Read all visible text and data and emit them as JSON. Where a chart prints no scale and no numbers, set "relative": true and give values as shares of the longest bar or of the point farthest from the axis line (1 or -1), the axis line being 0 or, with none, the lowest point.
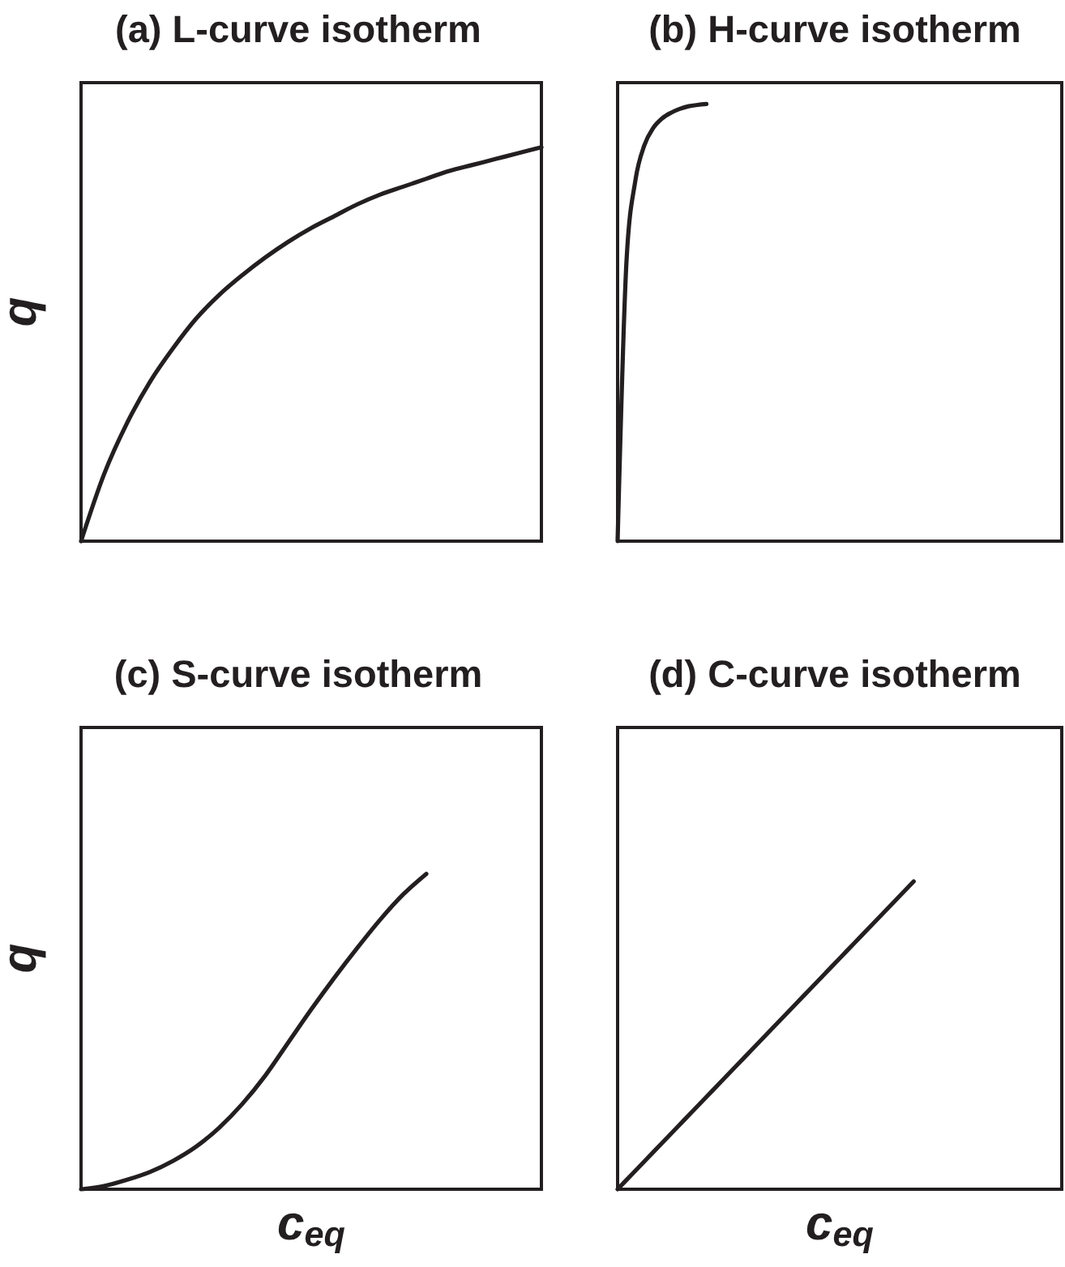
{
  "chart_data": [
    {
      "type": "line",
      "title": "(a) L-curve isotherm",
      "ylabel": "q",
      "relative": true,
      "color": "#231f20",
      "categories": [
        null,
        null,
        null,
        null,
        null,
        null,
        null,
        null,
        null,
        null,
        null,
        null,
        null,
        null,
        null,
        null,
        null,
        null,
        null,
        null,
        null
      ],
      "values": [
        0,
        0.17,
        0.3,
        0.405,
        0.49,
        0.565,
        0.625,
        0.675,
        0.72,
        0.76,
        0.795,
        0.825,
        0.855,
        0.88,
        0.9,
        0.92,
        0.94,
        0.955,
        0.97,
        0.985,
        1
      ]
    },
    {
      "type": "line",
      "title": "(b) H-curve isotherm",
      "relative": true,
      "color": "#231f20",
      "categories": [
        null,
        null,
        null,
        null,
        null,
        null,
        null,
        null,
        null,
        null,
        null,
        null,
        null,
        null,
        null,
        null,
        null,
        null,
        null,
        null,
        null,
        null,
        null,
        null,
        null,
        null,
        null,
        null,
        null,
        null,
        null,
        null,
        null,
        null,
        null,
        null,
        null,
        null,
        null,
        null,
        null,
        null,
        null,
        null,
        null,
        null,
        null,
        null,
        null,
        null,
        null
      ],
      "values": [
        0,
        0.64,
        0.825,
        0.905,
        0.945,
        0.967,
        0.98,
        0.989,
        0.995,
        0.998,
        1,
        null,
        null,
        null,
        null,
        null,
        null,
        null,
        null,
        null,
        null,
        null,
        null,
        null,
        null,
        null,
        null,
        null,
        null,
        null,
        null,
        null,
        null,
        null,
        null,
        null,
        null,
        null,
        null,
        null,
        null,
        null,
        null,
        null,
        null,
        null,
        null,
        null,
        null,
        null,
        null
      ]
    },
    {
      "type": "line",
      "title": "(c) S-curve isotherm",
      "xlabel": "c$_{eq}$",
      "ylabel": "q",
      "relative": true,
      "color": "#231f20",
      "categories": [
        null,
        null,
        null,
        null,
        null,
        null,
        null,
        null,
        null,
        null,
        null,
        null,
        null,
        null,
        null,
        null,
        null,
        null,
        null,
        null,
        null
      ],
      "values": [
        0,
        0.01,
        0.03,
        0.055,
        0.09,
        0.135,
        0.195,
        0.27,
        0.36,
        0.465,
        0.57,
        0.67,
        0.765,
        0.855,
        0.935,
        1,
        null,
        null,
        null,
        null,
        null
      ]
    },
    {
      "type": "line",
      "title": "(d) C-curve isotherm",
      "xlabel": "c$_{eq}$",
      "relative": true,
      "color": "#231f20",
      "categories": [
        null,
        null,
        null,
        null,
        null,
        null,
        null,
        null,
        null,
        null,
        null,
        null,
        null,
        null,
        null,
        null,
        null,
        null,
        null,
        null,
        null,
        null,
        null,
        null,
        null,
        null,
        null,
        null,
        null,
        null,
        null
      ],
      "values": [
        0,
        0.05,
        0.1,
        0.15,
        0.2,
        0.25,
        0.3,
        0.35,
        0.4,
        0.45,
        0.5,
        0.55,
        0.6,
        0.65,
        0.7,
        0.75,
        0.8,
        0.85,
        0.9,
        0.95,
        1,
        null,
        null,
        null,
        null,
        null,
        null,
        null,
        null,
        null,
        null
      ]
    }
  ]
}
